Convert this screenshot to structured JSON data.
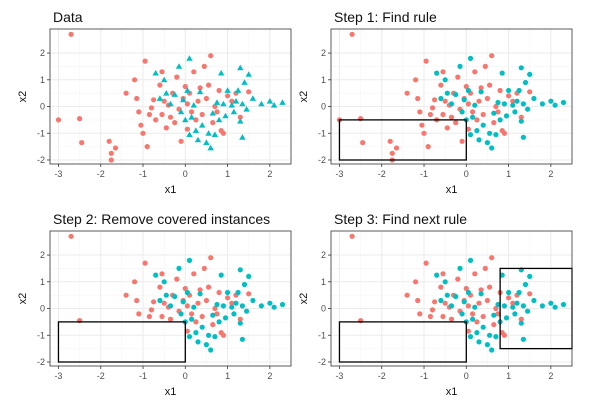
{
  "colors": {
    "series_a": "#f8766d",
    "series_b": "#00bfc4",
    "panel_border": "#333333",
    "grid_major": "#ebebeb",
    "grid_minor": "#f5f5f5",
    "rule_box": "#000000"
  },
  "chart_data": [
    {
      "type": "scatter",
      "title": "Data",
      "xlabel": "x1",
      "ylabel": "x2",
      "xlim": [
        -3.2,
        2.5
      ],
      "ylim": [
        -2.15,
        2.9
      ],
      "xticks": [
        -3,
        -2,
        -1,
        0,
        1,
        2
      ],
      "yticks": [
        -2,
        -1,
        0,
        1,
        2
      ],
      "grid": true,
      "marker_b": "triangle",
      "boxes": [],
      "show_covered_a": true,
      "series": [
        {
          "id": "a",
          "points": [
            [
              -2.7,
              2.7
            ],
            [
              -3.0,
              -0.5
            ],
            [
              -2.5,
              -0.45
            ],
            [
              -2.45,
              -1.35
            ],
            [
              -1.8,
              -1.3
            ],
            [
              -1.75,
              -1.75
            ],
            [
              -1.65,
              -1.55
            ],
            [
              -1.75,
              -2.0
            ],
            [
              -1.4,
              0.5
            ],
            [
              -1.15,
              0.3
            ],
            [
              -1.1,
              -0.2
            ],
            [
              -1.05,
              -0.7
            ],
            [
              -1.0,
              -1.0
            ],
            [
              -0.9,
              -1.5
            ],
            [
              -0.85,
              -0.3
            ],
            [
              -0.8,
              -0.05
            ],
            [
              -0.75,
              0.25
            ],
            [
              -0.7,
              -0.5
            ],
            [
              -0.6,
              0.8
            ],
            [
              -0.55,
              -0.3
            ],
            [
              -0.5,
              0.2
            ],
            [
              -0.45,
              -0.8
            ],
            [
              -0.4,
              0.05
            ],
            [
              -0.35,
              -0.4
            ],
            [
              -0.3,
              0.5
            ],
            [
              -0.25,
              -0.6
            ],
            [
              -0.2,
              1.1
            ],
            [
              -0.15,
              -0.1
            ],
            [
              -0.1,
              -1.3
            ],
            [
              -0.05,
              0.3
            ],
            [
              0.0,
              0.75
            ],
            [
              0.05,
              0.1
            ],
            [
              0.1,
              0.5
            ],
            [
              0.15,
              -0.2
            ],
            [
              0.2,
              1.3
            ],
            [
              0.25,
              -0.5
            ],
            [
              0.3,
              0.2
            ],
            [
              0.35,
              0.7
            ],
            [
              0.4,
              -0.3
            ],
            [
              0.45,
              1.5
            ],
            [
              0.5,
              0.3
            ],
            [
              0.55,
              0.8
            ],
            [
              0.6,
              1.9
            ],
            [
              0.65,
              -0.6
            ],
            [
              0.7,
              0.0
            ],
            [
              0.75,
              -0.2
            ],
            [
              0.8,
              0.6
            ],
            [
              0.85,
              -0.9
            ],
            [
              0.9,
              -1.0
            ],
            [
              1.0,
              0.4
            ],
            [
              1.1,
              0.2
            ],
            [
              1.2,
              0.5
            ],
            [
              1.3,
              -0.4
            ],
            [
              1.5,
              0.55
            ],
            [
              -0.95,
              1.7
            ],
            [
              -1.2,
              1.0
            ],
            [
              -0.55,
              1.3
            ],
            [
              0.05,
              -0.85
            ]
          ]
        },
        {
          "id": "b",
          "points": [
            [
              -0.7,
              1.25
            ],
            [
              -0.6,
              0.3
            ],
            [
              -0.5,
              1.0
            ],
            [
              -0.45,
              0.5
            ],
            [
              -0.35,
              0.1
            ],
            [
              -0.25,
              0.45
            ],
            [
              -0.15,
              1.5
            ],
            [
              -0.1,
              -0.2
            ],
            [
              -0.05,
              0.25
            ],
            [
              0.0,
              -0.5
            ],
            [
              0.05,
              0.6
            ],
            [
              0.1,
              1.8
            ],
            [
              0.1,
              -1.05
            ],
            [
              0.15,
              -0.4
            ],
            [
              0.2,
              0.05
            ],
            [
              0.25,
              -0.9
            ],
            [
              0.3,
              -1.25
            ],
            [
              0.35,
              0.55
            ],
            [
              0.4,
              -0.7
            ],
            [
              0.5,
              -1.35
            ],
            [
              0.55,
              -1.0
            ],
            [
              0.6,
              -1.55
            ],
            [
              0.65,
              -0.25
            ],
            [
              0.7,
              -1.05
            ],
            [
              0.75,
              0.15
            ],
            [
              0.8,
              -0.5
            ],
            [
              0.85,
              1.25
            ],
            [
              0.9,
              0.1
            ],
            [
              0.95,
              -0.35
            ],
            [
              1.0,
              0.6
            ],
            [
              1.1,
              0.05
            ],
            [
              1.15,
              -0.2
            ],
            [
              1.2,
              0.2
            ],
            [
              1.25,
              0.6
            ],
            [
              1.3,
              1.45
            ],
            [
              1.35,
              0.1
            ],
            [
              1.4,
              0.9
            ],
            [
              1.45,
              -0.1
            ],
            [
              1.5,
              1.2
            ],
            [
              1.6,
              0.3
            ],
            [
              1.8,
              0.1
            ],
            [
              2.0,
              0.2
            ],
            [
              2.1,
              0.05
            ],
            [
              2.3,
              0.15
            ],
            [
              1.3,
              -0.55
            ],
            [
              1.35,
              -1.15
            ]
          ]
        }
      ]
    },
    {
      "type": "scatter",
      "title": "Step 1: Find rule",
      "xlabel": "x1",
      "ylabel": "x2",
      "xlim": [
        -3.2,
        2.5
      ],
      "ylim": [
        -2.15,
        2.9
      ],
      "xticks": [
        -3,
        -2,
        -1,
        0,
        1,
        2
      ],
      "yticks": [
        -2,
        -1,
        0,
        1,
        2
      ],
      "grid": true,
      "marker_b": "circle",
      "boxes": [
        {
          "x1": [
            -3.0,
            0.0
          ],
          "x2": [
            -2.0,
            -0.5
          ]
        }
      ],
      "show_covered_a": true
    },
    {
      "type": "scatter",
      "title": "Step 2: Remove covered instances",
      "xlabel": "x1",
      "ylabel": "x2",
      "xlim": [
        -3.2,
        2.5
      ],
      "ylim": [
        -2.15,
        2.9
      ],
      "xticks": [
        -3,
        -2,
        -1,
        0,
        1,
        2
      ],
      "yticks": [
        -2,
        -1,
        0,
        1,
        2
      ],
      "grid": true,
      "marker_b": "circle",
      "boxes": [
        {
          "x1": [
            -3.0,
            0.0
          ],
          "x2": [
            -2.0,
            -0.5
          ]
        }
      ],
      "show_covered_a": false
    },
    {
      "type": "scatter",
      "title": "Step 3: Find next rule",
      "xlabel": "x1",
      "ylabel": "x2",
      "xlim": [
        -3.2,
        2.5
      ],
      "ylim": [
        -2.15,
        2.9
      ],
      "xticks": [
        -3,
        -2,
        -1,
        0,
        1,
        2
      ],
      "yticks": [
        -2,
        -1,
        0,
        1,
        2
      ],
      "grid": true,
      "marker_b": "circle",
      "boxes": [
        {
          "x1": [
            -3.0,
            0.0
          ],
          "x2": [
            -2.0,
            -0.5
          ]
        },
        {
          "x1": [
            0.8,
            2.5
          ],
          "x2": [
            -1.5,
            1.5
          ]
        }
      ],
      "show_covered_a": false
    }
  ]
}
